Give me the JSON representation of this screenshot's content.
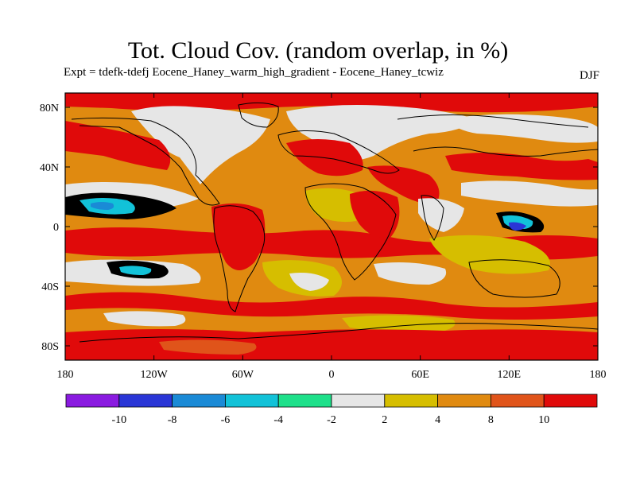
{
  "title": "Tot. Cloud Cov. (random overlap, in %)",
  "subtitle": "Expt = tdefk-tdefj Eocene_Haney_warm_high_gradient - Eocene_Haney_tcwiz",
  "season": "DJF",
  "colors": {
    "lt_m10": "#8a1be0",
    "m10_m8": "#2a36d6",
    "m8_m6": "#1a8ad6",
    "m6_m4": "#12c2d8",
    "m4_m2": "#1ee08a",
    "m2_2": "#e6e6e6",
    "c2_4": "#d6be00",
    "c4_8": "#e08a10",
    "c8_10": "#e0541a",
    "gt_10": "#e00a0a"
  },
  "map": {
    "x_ticks": [
      "180",
      "120W",
      "60W",
      "0",
      "60E",
      "120E",
      "180"
    ],
    "y_ticks": [
      "80N",
      "40N",
      "0",
      "40S",
      "80S"
    ]
  },
  "colorbar": {
    "labels": [
      "-10",
      "-8",
      "-6",
      "-4",
      "-2",
      "2",
      "4",
      "8",
      "10"
    ]
  }
}
